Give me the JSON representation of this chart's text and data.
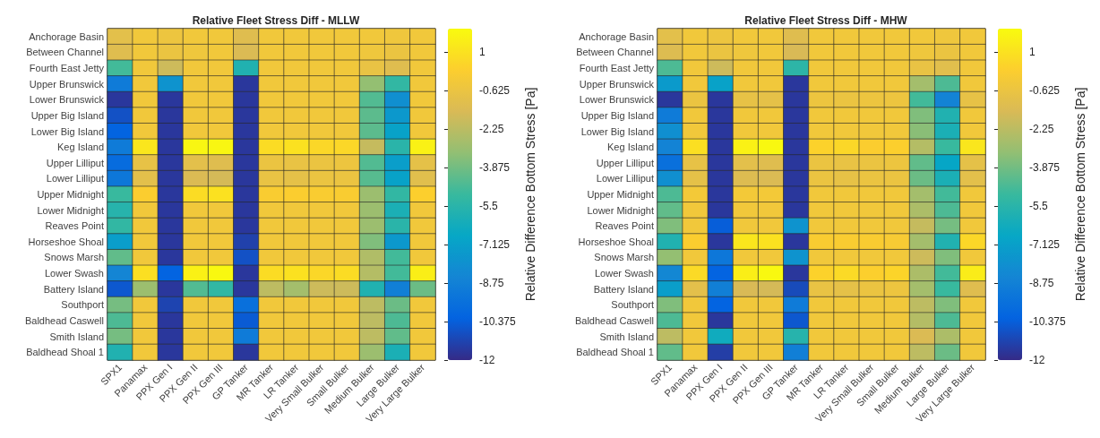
{
  "chart_data": [
    {
      "type": "heatmap",
      "title": "Relative Fleet Stress Diff - MLLW",
      "clabel": "Relative Difference Bottom Stress [Pa]",
      "grid": false,
      "categories": [
        "SPX1",
        "Panamax",
        "PPX Gen I",
        "PPX Gen II",
        "PPX Gen III",
        "GP Tanker",
        "MR Tanker",
        "LR Tanker",
        "Very Small Bulker",
        "Small Bulker",
        "Medium Bulker",
        "Large Bulker",
        "Very Large Bulker"
      ],
      "y_categories": [
        "Anchorage Basin",
        "Between Channel",
        "Fourth East Jetty",
        "Upper Brunswick",
        "Lower Brunswick",
        "Upper Big Island",
        "Lower Big Island",
        "Keg Island",
        "Upper Lilliput",
        "Lower Lilliput",
        "Upper Midnight",
        "Lower Midnight",
        "Reaves Point",
        "Horseshoe Shoal",
        "Snows Marsh",
        "Lower Swash",
        "Battery Island",
        "Southport",
        "Baldhead Caswell",
        "Smith Island",
        "Baldhead Shoal 1"
      ],
      "cells": [
        [
          -1.0,
          -0.3,
          -0.5,
          -0.3,
          -0.3,
          -1.2,
          -0.3,
          -0.3,
          -0.3,
          -0.3,
          -0.3,
          -0.4,
          -0.3
        ],
        [
          -1.2,
          -0.3,
          -0.6,
          -0.4,
          -0.3,
          -1.4,
          -0.3,
          -0.3,
          -0.3,
          -0.3,
          -0.4,
          -0.6,
          -0.3
        ],
        [
          -4.8,
          -0.3,
          -1.8,
          -0.3,
          -0.3,
          -5.8,
          -0.3,
          -0.3,
          -0.3,
          -0.3,
          -0.7,
          -1.2,
          -0.3
        ],
        [
          -9.0,
          -0.3,
          -7.8,
          -0.3,
          -0.3,
          -11.6,
          -0.3,
          -0.3,
          -0.3,
          -0.3,
          -3.2,
          -5.2,
          -0.3
        ],
        [
          -11.6,
          -0.3,
          -11.6,
          -0.3,
          -0.3,
          -11.6,
          -0.3,
          -0.3,
          -0.3,
          -0.3,
          -4.5,
          -8.0,
          -0.3
        ],
        [
          -10.8,
          -0.3,
          -11.6,
          -0.3,
          -0.3,
          -11.6,
          -0.3,
          -0.3,
          -0.3,
          -0.3,
          -4.3,
          -7.5,
          -0.3
        ],
        [
          -10.2,
          -0.3,
          -11.6,
          -0.3,
          -0.3,
          -11.6,
          -0.3,
          -0.3,
          -0.3,
          -0.3,
          -4.3,
          -7.0,
          -0.3
        ],
        [
          -9.0,
          1.2,
          -11.6,
          1.8,
          1.8,
          -11.6,
          0.8,
          1.0,
          0.6,
          0.6,
          -2.0,
          -5.5,
          1.6
        ],
        [
          -9.8,
          -0.8,
          -11.6,
          -1.0,
          -1.2,
          -11.6,
          -0.6,
          -0.7,
          -0.6,
          -0.5,
          -4.5,
          -7.2,
          -0.9
        ],
        [
          -9.2,
          -1.0,
          -11.6,
          -1.4,
          -1.6,
          -11.6,
          -0.7,
          -0.9,
          -0.6,
          -0.6,
          -4.4,
          -7.0,
          -1.1
        ],
        [
          -5.0,
          0.2,
          -11.6,
          0.8,
          1.0,
          -11.6,
          0.1,
          0.2,
          0.1,
          0.1,
          -3.0,
          -5.2,
          0.3
        ],
        [
          -5.6,
          -0.3,
          -11.6,
          -0.3,
          -0.3,
          -11.6,
          -0.3,
          -0.3,
          -0.3,
          -0.3,
          -3.0,
          -6.0,
          -0.3
        ],
        [
          -5.2,
          -0.3,
          -11.6,
          -0.3,
          -0.3,
          -11.6,
          -0.3,
          -0.3,
          -0.3,
          -0.3,
          -3.0,
          -5.5,
          -0.3
        ],
        [
          -7.2,
          -0.3,
          -11.6,
          -0.3,
          -0.3,
          -11.3,
          -0.3,
          -0.3,
          -0.3,
          -0.3,
          -3.6,
          -7.5,
          -0.3
        ],
        [
          -4.2,
          -0.3,
          -11.6,
          -0.3,
          -0.3,
          -10.8,
          -0.3,
          -0.3,
          -0.3,
          -0.3,
          -2.5,
          -4.8,
          -0.3
        ],
        [
          -8.5,
          0.9,
          -10.2,
          1.6,
          1.9,
          -11.6,
          0.8,
          1.0,
          0.6,
          0.8,
          -2.4,
          -4.8,
          1.5
        ],
        [
          -10.6,
          -3.0,
          -11.6,
          -4.5,
          -5.2,
          -11.6,
          -2.2,
          -2.8,
          -1.8,
          -1.8,
          -5.8,
          -8.8,
          -4.0
        ],
        [
          -3.8,
          -0.3,
          -11.2,
          -0.3,
          -0.3,
          -9.6,
          -0.3,
          -0.3,
          -0.3,
          -0.3,
          -2.2,
          -4.0,
          -0.3
        ],
        [
          -4.6,
          -0.3,
          -11.6,
          -0.3,
          -0.3,
          -10.5,
          -0.3,
          -0.3,
          -0.3,
          -0.3,
          -2.2,
          -4.6,
          -0.3
        ],
        [
          -3.8,
          -0.3,
          -11.6,
          -0.3,
          -0.3,
          -9.0,
          -0.3,
          -0.3,
          -0.3,
          -0.3,
          -2.2,
          -4.2,
          -0.3
        ],
        [
          -5.8,
          -0.3,
          -11.6,
          -0.3,
          -0.3,
          -11.6,
          -0.3,
          -0.3,
          -0.3,
          -0.3,
          -3.0,
          -6.0,
          -0.3
        ]
      ],
      "clim": [
        -12,
        2
      ],
      "cticks": [
        -12,
        -10.375,
        -8.75,
        -7.125,
        -5.5,
        -3.875,
        -2.25,
        -0.625,
        1
      ]
    },
    {
      "type": "heatmap",
      "title": "Relative Fleet Stress Diff - MHW",
      "clabel": "Relative Difference Bottom Stress [Pa]",
      "grid": false,
      "categories": [
        "SPX1",
        "Panamax",
        "PPX Gen I",
        "PPX Gen II",
        "PPX Gen III",
        "GP Tanker",
        "MR Tanker",
        "LR Tanker",
        "Very Small Bulker",
        "Small Bulker",
        "Medium Bulker",
        "Large Bulker",
        "Very Large Bulker"
      ],
      "y_categories": [
        "Anchorage Basin",
        "Between Channel",
        "Fourth East Jetty",
        "Upper Brunswick",
        "Lower Brunswick",
        "Upper Big Island",
        "Lower Big Island",
        "Keg Island",
        "Upper Lilliput",
        "Lower Lilliput",
        "Upper Midnight",
        "Lower Midnight",
        "Reaves Point",
        "Horseshoe Shoal",
        "Snows Marsh",
        "Lower Swash",
        "Battery Island",
        "Southport",
        "Baldhead Caswell",
        "Smith Island",
        "Baldhead Shoal 1"
      ],
      "cells": [
        [
          -1.0,
          -0.3,
          -0.5,
          -0.3,
          -0.3,
          -1.2,
          -0.3,
          -0.3,
          -0.3,
          -0.3,
          -0.3,
          -0.4,
          -0.3
        ],
        [
          -1.3,
          -0.3,
          -0.6,
          -0.4,
          -0.3,
          -1.5,
          -0.3,
          -0.3,
          -0.3,
          -0.3,
          -0.4,
          -0.6,
          -0.3
        ],
        [
          -4.6,
          -0.3,
          -1.8,
          -0.3,
          -0.3,
          -5.4,
          -0.3,
          -0.3,
          -0.3,
          -0.3,
          -0.7,
          -1.1,
          -0.3
        ],
        [
          -7.4,
          -0.3,
          -7.0,
          -0.3,
          -0.3,
          -11.6,
          -0.3,
          -0.3,
          -0.3,
          -0.3,
          -2.8,
          -4.6,
          -0.3
        ],
        [
          -11.6,
          -0.6,
          -11.6,
          -0.8,
          -0.9,
          -11.6,
          -0.5,
          -0.6,
          -0.5,
          -0.5,
          -4.8,
          -8.6,
          -0.8
        ],
        [
          -9.0,
          -0.3,
          -11.6,
          -0.3,
          -0.3,
          -11.6,
          -0.3,
          -0.3,
          -0.3,
          -0.3,
          -3.6,
          -5.8,
          -0.3
        ],
        [
          -8.0,
          -0.3,
          -11.6,
          -0.3,
          -0.3,
          -11.6,
          -0.3,
          -0.3,
          -0.3,
          -0.3,
          -3.4,
          -6.0,
          -0.3
        ],
        [
          -8.6,
          0.9,
          -11.6,
          1.6,
          1.9,
          -11.6,
          0.4,
          0.6,
          0.2,
          0.3,
          -2.4,
          -5.0,
          1.2
        ],
        [
          -9.6,
          -0.8,
          -11.6,
          -1.0,
          -1.2,
          -11.6,
          -0.6,
          -0.7,
          -0.6,
          -0.5,
          -4.2,
          -6.8,
          -0.9
        ],
        [
          -8.0,
          -0.9,
          -11.6,
          -1.3,
          -1.4,
          -11.6,
          -0.6,
          -0.8,
          -0.6,
          -0.6,
          -4.0,
          -6.0,
          -1.0
        ],
        [
          -4.6,
          -0.2,
          -11.6,
          -0.2,
          -0.2,
          -11.6,
          -0.3,
          -0.3,
          -0.3,
          -0.3,
          -2.8,
          -4.8,
          -0.3
        ],
        [
          -4.2,
          -0.3,
          -11.6,
          -0.3,
          -0.3,
          -11.6,
          -0.3,
          -0.3,
          -0.3,
          -0.3,
          -2.6,
          -4.6,
          -0.3
        ],
        [
          -3.6,
          -0.3,
          -10.4,
          -0.3,
          -0.3,
          -7.8,
          -0.3,
          -0.3,
          -0.3,
          -0.3,
          -2.0,
          -3.8,
          -0.3
        ],
        [
          -5.8,
          0.2,
          -11.6,
          1.2,
          1.0,
          -11.6,
          0.1,
          0.1,
          0.1,
          0.0,
          -2.8,
          -5.8,
          0.6
        ],
        [
          -3.2,
          -0.3,
          -9.2,
          -0.3,
          -0.3,
          -7.8,
          -0.3,
          -0.3,
          -0.3,
          -0.3,
          -1.8,
          -3.6,
          -0.3
        ],
        [
          -8.4,
          0.7,
          -10.2,
          1.5,
          1.9,
          -11.6,
          0.4,
          0.7,
          0.3,
          0.5,
          -2.6,
          -4.8,
          1.4
        ],
        [
          -7.2,
          -1.0,
          -8.8,
          -1.5,
          -1.6,
          -11.0,
          -0.7,
          -0.9,
          -0.6,
          -0.5,
          -2.8,
          -5.0,
          -1.2
        ],
        [
          -3.6,
          -0.3,
          -10.2,
          -0.3,
          -0.3,
          -9.0,
          -0.3,
          -0.3,
          -0.3,
          -0.3,
          -2.2,
          -3.6,
          -0.3
        ],
        [
          -4.6,
          -0.3,
          -11.6,
          -0.3,
          -0.3,
          -10.6,
          -0.3,
          -0.3,
          -0.3,
          -0.3,
          -2.4,
          -4.6,
          -0.3
        ],
        [
          -2.2,
          -0.3,
          -6.4,
          -0.3,
          -0.3,
          -5.6,
          -0.3,
          -0.3,
          -0.3,
          -0.3,
          -1.4,
          -2.6,
          -0.3
        ],
        [
          -4.2,
          -0.3,
          -11.4,
          -0.3,
          -0.3,
          -8.8,
          -0.3,
          -0.3,
          -0.3,
          -0.3,
          -2.2,
          -4.0,
          -0.3
        ]
      ],
      "clim": [
        -12,
        2
      ],
      "cticks": [
        -12,
        -10.375,
        -8.75,
        -7.125,
        -5.5,
        -3.875,
        -2.25,
        -0.625,
        1
      ]
    }
  ]
}
